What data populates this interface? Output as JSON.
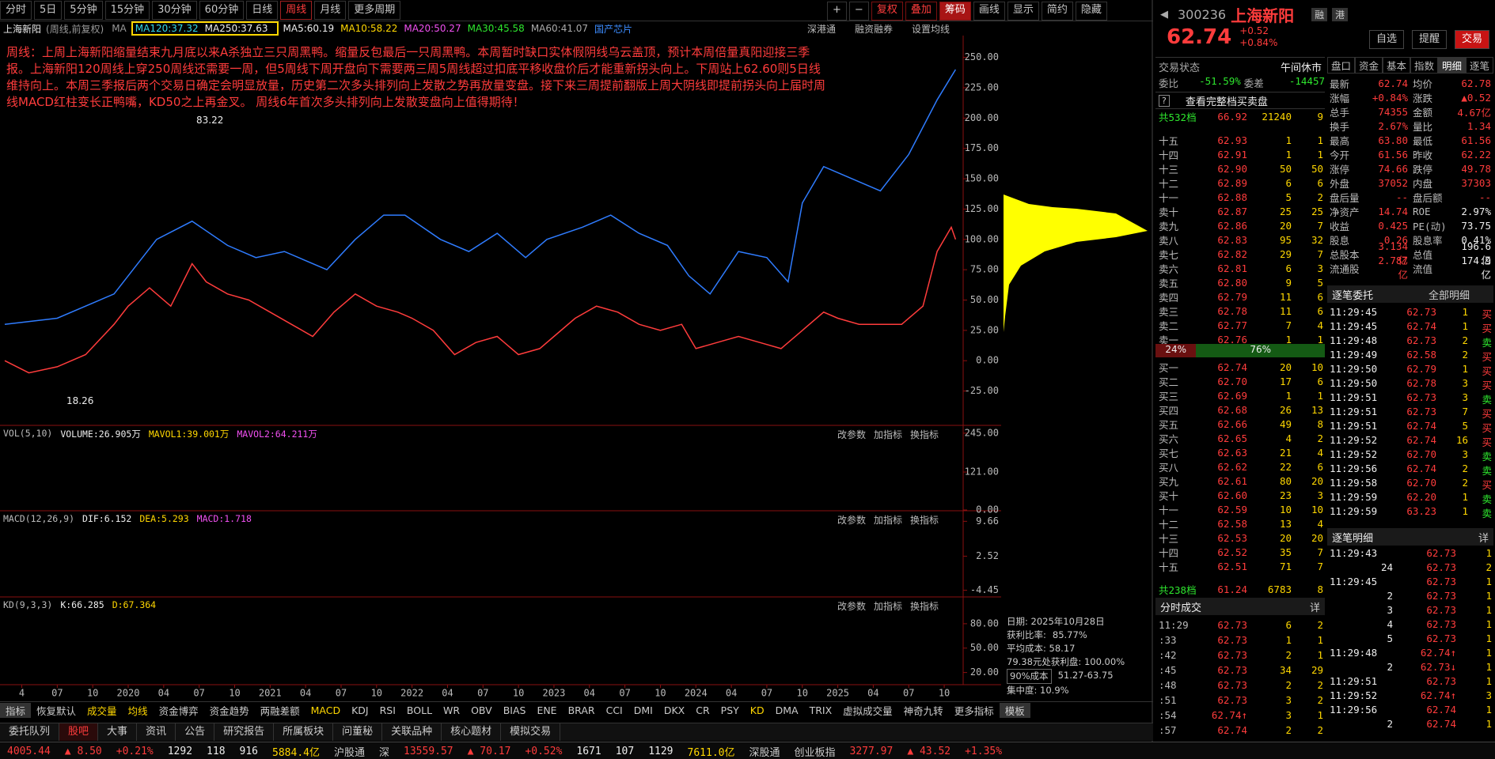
{
  "toolbar": {
    "periods": [
      "分时",
      "5日",
      "5分钟",
      "15分钟",
      "30分钟",
      "60分钟",
      "日线",
      "周线",
      "月线",
      "更多周期"
    ],
    "active": 7,
    "tools": [
      "+",
      "−",
      "复权",
      "叠加",
      "筹码",
      "画线",
      "显示",
      "简约",
      "隐藏"
    ]
  },
  "chart_header": {
    "mode": "(周线,前复权)",
    "ma_label": "MA",
    "ma": [
      "MA5:60.19",
      "MA10:58.22",
      "MA20:50.27",
      "MA30:45.58",
      "MA60:41.07",
      "MA120:37.32",
      "MA250:37.63"
    ],
    "links": [
      "深港通",
      "融资融券",
      "设置均线"
    ]
  },
  "chart_data": {
    "type": "line",
    "annotation": "周线：上周上海新阳缩量结束九月底以来A杀独立三只周黑鸭。缩量反包最后一只周黑鸭。本周暂时缺口实体假阴线乌云盖顶，预计本周倍量真阳迎接三季报。上海新阳120周线上穿250周线还需要一周，但5周线下周开盘向下需要两三周5周线超过扣底平移收盘价后才能重新拐头向上。下周站上62.60则5日线维持向上。本周三季报后两个交易日确定会明显放量，历史第二次多头排列向上发散之势再放量变盘。接下来三周提前翻版上周大阴线即提前拐头向上届时周线MACD红柱变长正鸭嘴，KD50之上再金叉。 周线6年首次多头排列向上发散变盘向上值得期待！",
    "price_labels": [
      "83.22",
      "18.26"
    ],
    "xlim": [
      2019.13,
      2025.85
    ],
    "ylim": [
      -52,
      268
    ],
    "yticks": [
      {
        "value": 250,
        "label": "250.00"
      },
      {
        "value": 225,
        "label": "225.00"
      },
      {
        "value": 200,
        "label": "200.00"
      },
      {
        "value": 175,
        "label": "175.00"
      },
      {
        "value": 150,
        "label": "150.00"
      },
      {
        "value": 125,
        "label": "125.00"
      },
      {
        "value": 100,
        "label": "100.00"
      },
      {
        "value": 75,
        "label": "75.00"
      },
      {
        "value": 50,
        "label": "50.00"
      },
      {
        "value": 25,
        "label": "25.00"
      },
      {
        "value": 0,
        "label": "0.00"
      },
      {
        "value": -25,
        "label": "-25.00"
      }
    ],
    "xticks": [
      {
        "value": 2019.25,
        "label": "4"
      },
      {
        "value": 2019.5,
        "label": "07"
      },
      {
        "value": 2019.75,
        "label": "10"
      },
      {
        "value": 2020,
        "label": "2020"
      },
      {
        "value": 2020.25,
        "label": "04"
      },
      {
        "value": 2020.5,
        "label": "07"
      },
      {
        "value": 2020.75,
        "label": "10"
      },
      {
        "value": 2021,
        "label": "2021"
      },
      {
        "value": 2021.25,
        "label": "04"
      },
      {
        "value": 2021.5,
        "label": "07"
      },
      {
        "value": 2021.75,
        "label": "10"
      },
      {
        "value": 2022,
        "label": "2022"
      },
      {
        "value": 2022.25,
        "label": "04"
      },
      {
        "value": 2022.5,
        "label": "07"
      },
      {
        "value": 2022.75,
        "label": "10"
      },
      {
        "value": 2023,
        "label": "2023"
      },
      {
        "value": 2023.25,
        "label": "04"
      },
      {
        "value": 2023.5,
        "label": "07"
      },
      {
        "value": 2023.75,
        "label": "10"
      },
      {
        "value": 2024,
        "label": "2024"
      },
      {
        "value": 2024.25,
        "label": "04"
      },
      {
        "value": 2024.5,
        "label": "07"
      },
      {
        "value": 2024.75,
        "label": "10"
      },
      {
        "value": 2025,
        "label": "2025"
      },
      {
        "value": 2025.25,
        "label": "04"
      },
      {
        "value": 2025.5,
        "label": "07"
      },
      {
        "value": 2025.75,
        "label": "10"
      }
    ],
    "series": [
      {
        "name": "上海新阳",
        "color": "#ff3c3c",
        "x": [
          2019.13,
          2019.3,
          2019.5,
          2019.7,
          2019.9,
          2020.0,
          2020.15,
          2020.3,
          2020.45,
          2020.55,
          2020.7,
          2020.85,
          2021.0,
          2021.15,
          2021.3,
          2021.45,
          2021.6,
          2021.75,
          2021.9,
          2022.0,
          2022.15,
          2022.3,
          2022.45,
          2022.6,
          2022.75,
          2022.9,
          2023.0,
          2023.15,
          2023.3,
          2023.45,
          2023.6,
          2023.75,
          2023.9,
          2024.0,
          2024.15,
          2024.3,
          2024.45,
          2024.6,
          2024.75,
          2024.9,
          2025.0,
          2025.15,
          2025.3,
          2025.45,
          2025.6,
          2025.7,
          2025.8,
          2025.83
        ],
        "values": [
          0,
          -10,
          -5,
          5,
          30,
          45,
          60,
          45,
          80,
          65,
          55,
          50,
          40,
          30,
          20,
          40,
          55,
          45,
          40,
          35,
          25,
          5,
          15,
          20,
          5,
          10,
          20,
          35,
          45,
          40,
          30,
          25,
          30,
          10,
          15,
          20,
          15,
          10,
          25,
          40,
          35,
          30,
          30,
          30,
          45,
          90,
          110,
          100
        ]
      },
      {
        "name": "国产芯片",
        "color": "#2f7cff",
        "x": [
          2019.13,
          2019.5,
          2019.9,
          2020.2,
          2020.45,
          2020.7,
          2020.9,
          2021.1,
          2021.4,
          2021.6,
          2021.8,
          2021.95,
          2022.2,
          2022.4,
          2022.6,
          2022.8,
          2022.95,
          2023.2,
          2023.4,
          2023.6,
          2023.8,
          2023.95,
          2024.1,
          2024.3,
          2024.5,
          2024.65,
          2024.75,
          2024.9,
          2025.1,
          2025.3,
          2025.5,
          2025.7,
          2025.83
        ],
        "values": [
          30,
          35,
          55,
          100,
          115,
          95,
          85,
          90,
          75,
          100,
          120,
          120,
          100,
          90,
          105,
          85,
          100,
          110,
          120,
          105,
          95,
          70,
          55,
          90,
          85,
          65,
          130,
          160,
          150,
          140,
          170,
          215,
          240
        ]
      }
    ]
  },
  "panel_buttons": [
    "改参数",
    "加指标",
    "换指标"
  ],
  "vol_panel": {
    "title": "VOL(5,10)",
    "items": [
      "VOLUME:26.905万",
      "MAVOL1:39.001万",
      "MAVOL2:64.211万"
    ],
    "ylim": [
      0,
      265
    ],
    "yticks": [
      {
        "value": 245,
        "label": "245.00"
      },
      {
        "value": 121,
        "label": "121.00"
      },
      {
        "value": 0,
        "label": "0.00"
      }
    ]
  },
  "macd_panel": {
    "title": "MACD(12,26,9)",
    "items": [
      "DIF:6.152",
      "DEA:5.293",
      "MACD:1.718"
    ],
    "ylim": [
      -5.5,
      11.5
    ],
    "yticks": [
      9.66,
      2.52,
      -4.45
    ]
  },
  "kd_panel": {
    "title": "KD(9,3,3)",
    "items": [
      "K:66.285",
      "D:67.364"
    ],
    "ylim": [
      6,
      111
    ],
    "yticks": [
      {
        "value": 80,
        "label": "80.00"
      },
      {
        "value": 50,
        "label": "50.00"
      },
      {
        "value": 20,
        "label": "20.00"
      }
    ]
  },
  "chip_info": [
    "日期: 2025年10月28日",
    "获利比率:",
    "85.77%",
    "平均成本: 58.17",
    "79.38元处获利盘: 100.00%",
    "90%成本",
    "51.27-63.75",
    "集中度: 10.9%"
  ],
  "indicator_tabs": [
    "指标",
    "恢复默认",
    "成交量",
    "均线",
    "资金博弈",
    "资金趋势",
    "两融差额",
    "MACD",
    "KDJ",
    "RSI",
    "BOLL",
    "WR",
    "OBV",
    "BIAS",
    "ENE",
    "BRAR",
    "CCI",
    "DMI",
    "DKX",
    "CR",
    "PSY",
    "KD",
    "DMA",
    "TRIX",
    "虚拟成交量",
    "神奇九转",
    "更多指标",
    "模板"
  ],
  "bottom_tabs": [
    "委托队列",
    "股吧",
    "大事",
    "资讯",
    "公告",
    "研究报告",
    "所属板块",
    "问董秘",
    "关联品种",
    "核心题材",
    "模拟交易"
  ],
  "status_bar": [
    "4005.44",
    "▲ 8.50",
    "+0.21%",
    "1292",
    "118",
    "916",
    "5884.4亿",
    "沪股通",
    "深",
    "13559.57",
    "▲ 70.17",
    "+0.52%",
    "1671",
    "107",
    "1129",
    "7611.0亿",
    "深股通",
    "创业板指",
    "3277.97",
    "▲ 43.52",
    "+1.35%"
  ],
  "quote": {
    "code": "300236",
    "name": "上海新阳",
    "tags": [
      "融",
      "港"
    ],
    "price": "62.74",
    "change": "+0.52",
    "pct": "+0.84%",
    "buttons": [
      "自选",
      "提醒",
      "交易"
    ],
    "state_label": "交易状态",
    "state": "午间休市",
    "tabs": [
      "盘口",
      "资金",
      "基本",
      "指数",
      "明细",
      "逐笔"
    ],
    "ratio": [
      "委比",
      "-51.59%",
      "委差",
      "-14457"
    ],
    "full_book": "查看完整档买卖盘",
    "sell_total": [
      "共532档",
      "66.92",
      "21240",
      "9"
    ],
    "sells": [
      [
        "十五",
        "62.93",
        "1",
        "1"
      ],
      [
        "十四",
        "62.91",
        "1",
        "1"
      ],
      [
        "十三",
        "62.90",
        "50",
        "50"
      ],
      [
        "十二",
        "62.89",
        "6",
        "6"
      ],
      [
        "十一",
        "62.88",
        "5",
        "2"
      ],
      [
        "卖十",
        "62.87",
        "25",
        "25"
      ],
      [
        "卖九",
        "62.86",
        "20",
        "7"
      ],
      [
        "卖八",
        "62.83",
        "95",
        "32"
      ],
      [
        "卖七",
        "62.82",
        "29",
        "7"
      ],
      [
        "卖六",
        "62.81",
        "6",
        "3"
      ],
      [
        "卖五",
        "62.80",
        "9",
        "5"
      ],
      [
        "卖四",
        "62.79",
        "11",
        "6"
      ],
      [
        "卖三",
        "62.78",
        "11",
        "6"
      ],
      [
        "卖二",
        "62.77",
        "7",
        "4"
      ],
      [
        "卖一",
        "62.76",
        "1",
        "1"
      ]
    ],
    "split": [
      "24%",
      "76%"
    ],
    "buys": [
      [
        "买一",
        "62.74",
        "20",
        "10"
      ],
      [
        "买二",
        "62.70",
        "17",
        "6"
      ],
      [
        "买三",
        "62.69",
        "1",
        "1"
      ],
      [
        "买四",
        "62.68",
        "26",
        "13"
      ],
      [
        "买五",
        "62.66",
        "49",
        "8"
      ],
      [
        "买六",
        "62.65",
        "4",
        "2"
      ],
      [
        "买七",
        "62.63",
        "21",
        "4"
      ],
      [
        "买八",
        "62.62",
        "22",
        "6"
      ],
      [
        "买九",
        "62.61",
        "80",
        "20"
      ],
      [
        "买十",
        "62.60",
        "23",
        "3"
      ],
      [
        "十一",
        "62.59",
        "10",
        "10"
      ],
      [
        "十二",
        "62.58",
        "13",
        "4"
      ],
      [
        "十三",
        "62.53",
        "20",
        "20"
      ],
      [
        "十四",
        "62.52",
        "35",
        "7"
      ],
      [
        "十五",
        "62.51",
        "71",
        "7"
      ]
    ],
    "buy_total": [
      "共238档",
      "61.24",
      "6783",
      "8"
    ],
    "stats": [
      [
        "最新",
        "62.74",
        "均价",
        "62.78"
      ],
      [
        "涨幅",
        "+0.84%",
        "涨跌",
        "▲0.52"
      ],
      [
        "总手",
        "74355",
        "金额",
        "4.67亿"
      ],
      [
        "换手",
        "2.67%",
        "量比",
        "1.34"
      ],
      [
        "最高",
        "63.80",
        "最低",
        "61.56"
      ],
      [
        "今开",
        "61.56",
        "昨收",
        "62.22"
      ],
      [
        "涨停",
        "74.66",
        "跌停",
        "49.78"
      ],
      [
        "外盘",
        "37052",
        "内盘",
        "37303"
      ],
      [
        "盘后量",
        "--",
        "盘后额",
        "--"
      ],
      [
        "净资产",
        "14.74",
        "ROE",
        "2.97%"
      ],
      [
        "收益",
        "0.425",
        "PE(动)",
        "73.75"
      ],
      [
        "股息",
        "0.26",
        "股息率",
        "0.41%"
      ],
      [
        "总股本",
        "3.134亿",
        "总值",
        "196.6亿"
      ],
      [
        "流通股",
        "2.787亿",
        "流值",
        "174.9亿"
      ]
    ],
    "orders_title": "逐笔委托",
    "orders_filter": "全部明细",
    "orders": [
      [
        "11:29:45",
        "62.73",
        "1",
        "买"
      ],
      [
        "11:29:45",
        "62.74",
        "1",
        "买"
      ],
      [
        "11:29:48",
        "62.73",
        "2",
        "卖"
      ],
      [
        "11:29:49",
        "62.58",
        "2",
        "买"
      ],
      [
        "11:29:50",
        "62.79",
        "1",
        "买"
      ],
      [
        "11:29:50",
        "62.78",
        "3",
        "买"
      ],
      [
        "11:29:51",
        "62.73",
        "3",
        "卖"
      ],
      [
        "11:29:51",
        "62.73",
        "7",
        "买"
      ],
      [
        "11:29:51",
        "62.74",
        "5",
        "买"
      ],
      [
        "11:29:52",
        "62.74",
        "16",
        "买"
      ],
      [
        "11:29:52",
        "62.70",
        "3",
        "卖"
      ],
      [
        "11:29:56",
        "62.74",
        "2",
        "卖"
      ],
      [
        "11:29:58",
        "62.70",
        "2",
        "买"
      ],
      [
        "11:29:59",
        "62.20",
        "1",
        "卖"
      ],
      [
        "11:29:59",
        "63.23",
        "1",
        "卖"
      ]
    ],
    "detail_title": "逐笔明细",
    "detail": [
      [
        "11:29:43",
        "62.73",
        "1"
      ],
      [
        "24",
        "62.73",
        "2"
      ],
      [
        "11:29:45",
        "62.73",
        "1"
      ],
      [
        "2",
        "62.73",
        "1"
      ],
      [
        "3",
        "62.73",
        "1"
      ],
      [
        "4",
        "62.73",
        "1"
      ],
      [
        "5",
        "62.73",
        "1"
      ],
      [
        "11:29:48",
        "62.74↑",
        "1"
      ],
      [
        "2",
        "62.73↓",
        "1"
      ],
      [
        "11:29:51",
        "62.73",
        "1"
      ],
      [
        "11:29:52",
        "62.74↑",
        "3"
      ],
      [
        "11:29:56",
        "62.74",
        "1"
      ],
      [
        "2",
        "62.74",
        "1"
      ]
    ],
    "ticks_title": "分时成交",
    "more": "详",
    "ticks": [
      [
        "11:29",
        "62.73",
        "6",
        "2"
      ],
      [
        ":33",
        "62.73",
        "1",
        "1"
      ],
      [
        ":42",
        "62.73",
        "2",
        "1"
      ],
      [
        ":45",
        "62.73",
        "34",
        "29"
      ],
      [
        ":48",
        "62.73",
        "2",
        "2"
      ],
      [
        ":51",
        "62.73",
        "3",
        "2"
      ],
      [
        ":54",
        "62.74↑",
        "3",
        "1"
      ],
      [
        ":57",
        "62.74",
        "2",
        "2"
      ]
    ]
  }
}
